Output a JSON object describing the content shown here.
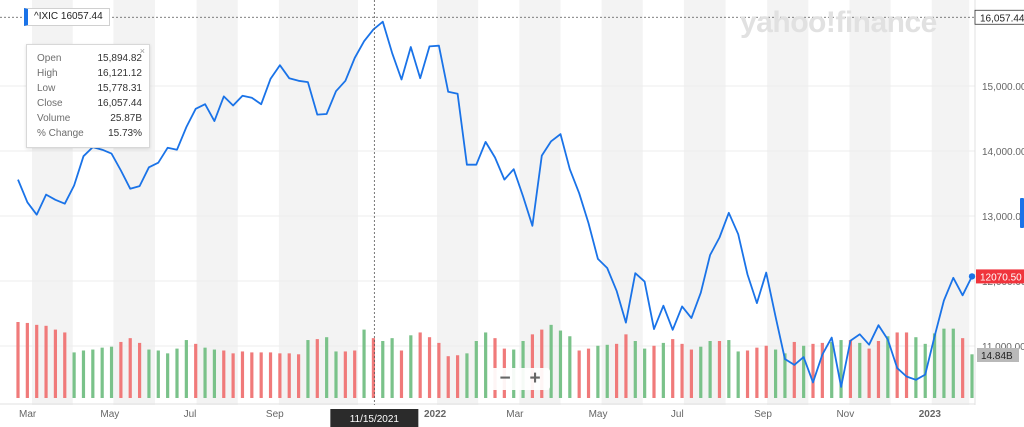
{
  "header": {
    "ticker_label": "^IXIC 16057.44"
  },
  "watermark": "yahoo!finance",
  "tooltip": {
    "rows": [
      {
        "label": "Open",
        "value": "15,894.82"
      },
      {
        "label": "High",
        "value": "16,121.12"
      },
      {
        "label": "Low",
        "value": "15,778.31"
      },
      {
        "label": "Close",
        "value": "16,057.44"
      },
      {
        "label": "Volume",
        "value": "25.87B"
      },
      {
        "label": "% Change",
        "value": "15.73%"
      }
    ],
    "close_glyph": "×"
  },
  "zoom": {
    "minus": "−",
    "plus": "+"
  },
  "colors": {
    "line": "#1a73e8",
    "up_volume": "#7ac28a",
    "down_volume": "#f07a7a",
    "band": "#f3f3f3",
    "price_badge": "#f0343c",
    "volume_badge": "#b9b9b9",
    "crosshair_badge": "#2b2b2b"
  },
  "chart_data": {
    "type": "line",
    "title": "^IXIC",
    "price_axis": {
      "ylim": [
        10200,
        16200
      ],
      "ticks": [
        11000,
        12000,
        13000,
        14000,
        15000
      ],
      "tick_labels": [
        "11,000.00",
        "12,000.00",
        "13,000.00",
        "14,000.00",
        "15,000.00"
      ]
    },
    "x_ticks": [
      {
        "label": "Mar",
        "week": 0
      },
      {
        "label": "May",
        "week": 8.7
      },
      {
        "label": "Jul",
        "week": 17.6
      },
      {
        "label": "Sep",
        "week": 26.4
      },
      {
        "label": "2022",
        "week": 43.3
      },
      {
        "label": "Mar",
        "week": 52.1
      },
      {
        "label": "May",
        "week": 60.9
      },
      {
        "label": "Jul",
        "week": 69.7
      },
      {
        "label": "Sep",
        "week": 78.6
      },
      {
        "label": "Nov",
        "week": 87.4
      },
      {
        "label": "2023",
        "week": 96.2
      }
    ],
    "crosshair": {
      "week": 38.1,
      "date_label": "11/15/2021",
      "value_label": "16,057.44",
      "value": 16057.44
    },
    "last_price": {
      "label": "12070.50",
      "value": 12070.5
    },
    "last_volume": {
      "label": "14.84B"
    },
    "series": [
      {
        "name": "^IXIC",
        "values": [
          13560,
          13210,
          13020,
          13330,
          13250,
          13190,
          13470,
          13920,
          14060,
          14020,
          13960,
          13700,
          13420,
          13460,
          13750,
          13820,
          14050,
          14020,
          14370,
          14650,
          14720,
          14460,
          14840,
          14700,
          14850,
          14820,
          14720,
          15110,
          15320,
          15120,
          15080,
          15060,
          14560,
          14570,
          14920,
          15080,
          15430,
          15690,
          15870,
          15990,
          15510,
          15100,
          15600,
          15120,
          15610,
          15620,
          14910,
          14880,
          13790,
          13790,
          14140,
          13900,
          13560,
          13720,
          13300,
          12850,
          13930,
          14150,
          14260,
          13720,
          13350,
          12890,
          12340,
          12200,
          11850,
          11360,
          12120,
          11990,
          11260,
          11620,
          11250,
          11610,
          11430,
          11820,
          12400,
          12670,
          13050,
          12720,
          12100,
          11660,
          12130,
          11450,
          10800,
          10710,
          10830,
          10440,
          10870,
          11130,
          10370,
          11080,
          11180,
          11020,
          11320,
          11100,
          10660,
          10530,
          10480,
          10560,
          11150,
          11700,
          12050,
          11780,
          12070
        ]
      },
      {
        "name": "Volume",
        "values": [
          0.8,
          0.79,
          0.77,
          0.76,
          0.72,
          0.69,
          0.48,
          0.5,
          0.51,
          0.53,
          0.54,
          0.59,
          0.63,
          0.58,
          0.51,
          0.5,
          0.47,
          0.52,
          0.61,
          0.57,
          0.53,
          0.51,
          0.5,
          0.47,
          0.49,
          0.48,
          0.48,
          0.48,
          0.47,
          0.47,
          0.46,
          0.61,
          0.62,
          0.64,
          0.49,
          0.49,
          0.5,
          0.72,
          0.63,
          0.6,
          0.63,
          0.5,
          0.66,
          0.69,
          0.64,
          0.58,
          0.44,
          0.45,
          0.47,
          0.6,
          0.69,
          0.63,
          0.52,
          0.51,
          0.6,
          0.67,
          0.72,
          0.77,
          0.71,
          0.65,
          0.5,
          0.52,
          0.55,
          0.56,
          0.57,
          0.67,
          0.6,
          0.52,
          0.55,
          0.58,
          0.62,
          0.57,
          0.51,
          0.54,
          0.6,
          0.6,
          0.61,
          0.49,
          0.5,
          0.53,
          0.55,
          0.51,
          0.47,
          0.59,
          0.55,
          0.57,
          0.58,
          0.59,
          0.61,
          0.61,
          0.58,
          0.52,
          0.6,
          0.65,
          0.69,
          0.69,
          0.64,
          0.57,
          0.68,
          0.73,
          0.73,
          0.63,
          0.46
        ],
        "direction": [
          -1,
          -1,
          -1,
          -1,
          -1,
          -1,
          1,
          1,
          1,
          1,
          1,
          -1,
          -1,
          -1,
          1,
          1,
          1,
          1,
          1,
          -1,
          1,
          1,
          -1,
          -1,
          -1,
          -1,
          -1,
          -1,
          -1,
          -1,
          -1,
          1,
          -1,
          1,
          1,
          -1,
          -1,
          1,
          -1,
          1,
          1,
          -1,
          1,
          -1,
          -1,
          -1,
          -1,
          -1,
          1,
          1,
          1,
          -1,
          -1,
          1,
          1,
          -1,
          -1,
          1,
          1,
          1,
          -1,
          -1,
          1,
          1,
          -1,
          -1,
          1,
          1,
          -1,
          1,
          -1,
          -1,
          -1,
          1,
          1,
          -1,
          1,
          1,
          -1,
          -1,
          -1,
          1,
          1,
          -1,
          1,
          -1,
          -1,
          1,
          1,
          -1,
          1,
          -1,
          -1,
          1,
          -1,
          -1,
          1,
          1,
          1,
          1,
          1,
          -1,
          1
        ]
      }
    ]
  }
}
